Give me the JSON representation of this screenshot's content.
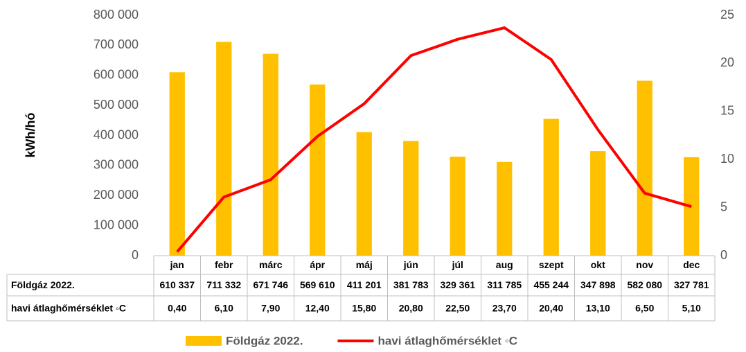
{
  "chart_data": {
    "type": "bar_line",
    "ylabel": "kWh/hó",
    "categories": [
      "jan",
      "febr",
      "márc",
      "ápr",
      "máj",
      "jún",
      "júl",
      "aug",
      "szept",
      "okt",
      "nov",
      "dec"
    ],
    "series": [
      {
        "name": "Földgáz 2022.",
        "type": "bar",
        "color": "#FFC000",
        "values": [
          610337,
          711332,
          671746,
          569610,
          411201,
          381783,
          329361,
          311785,
          455244,
          347898,
          582080,
          327781
        ],
        "value_labels": [
          "610 337",
          "711 332",
          "671 746",
          "569 610",
          "411 201",
          "381 783",
          "329 361",
          "311 785",
          "455 244",
          "347 898",
          "582 080",
          "327 781"
        ]
      },
      {
        "name": "havi átlaghőmérséklet ◦C",
        "type": "line",
        "axis": "y2",
        "color": "#FF0000",
        "values": [
          0.4,
          6.1,
          7.9,
          12.4,
          15.8,
          20.8,
          22.5,
          23.7,
          20.4,
          13.1,
          6.5,
          5.1
        ],
        "value_labels": [
          "0,40",
          "6,10",
          "7,90",
          "12,40",
          "15,80",
          "20,80",
          "22,50",
          "23,70",
          "20,40",
          "13,10",
          "6,50",
          "5,10"
        ]
      }
    ],
    "ylim": [
      0,
      800000
    ],
    "yticks": [
      0,
      {
        "value": 100000,
        "label": "100 000"
      },
      {
        "value": 200000,
        "label": "200 000"
      },
      {
        "value": 300000,
        "label": "300 000"
      },
      {
        "value": 400000,
        "label": "400 000"
      },
      {
        "value": 500000,
        "label": "500 000"
      },
      {
        "value": 600000,
        "label": "600 000"
      },
      {
        "value": 700000,
        "label": "700 000"
      },
      {
        "value": 800000,
        "label": "800 000"
      }
    ],
    "y2lim": [
      0,
      25
    ],
    "y2ticks": [
      0,
      5,
      10,
      15,
      20,
      25
    ],
    "legend": "bottom"
  }
}
